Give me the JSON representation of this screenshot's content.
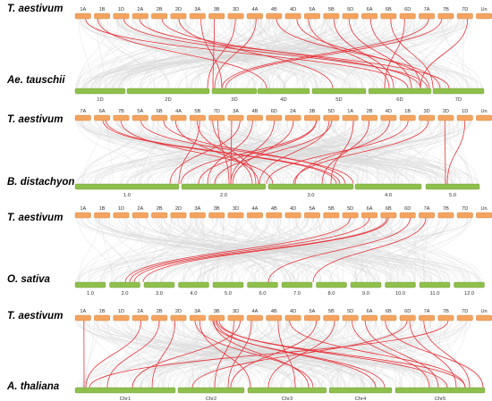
{
  "colors": {
    "wheat_chr": "#f4a460",
    "wheat_chr_edge": "#d0803a",
    "other_chr": "#8fbf4d",
    "other_chr_edge": "#6a9a32",
    "background_link": "#d9d9d9",
    "highlight_link": "#e8333a"
  },
  "panels": [
    {
      "top_species": "T. aestivum",
      "bottom_species": "Ae. tauschii",
      "top_chromosomes": [
        "1A",
        "1B",
        "1D",
        "2A",
        "2B",
        "2D",
        "3A",
        "3B",
        "3D",
        "4A",
        "4B",
        "4D",
        "5A",
        "5B",
        "5D",
        "6A",
        "6B",
        "6D",
        "7A",
        "7B",
        "7D",
        "Un"
      ],
      "bottom_chromosomes": [
        "1D",
        "2D",
        "3D",
        "4D",
        "5D",
        "6D",
        "7D"
      ]
    },
    {
      "top_species": "T. aestivum",
      "bottom_species": "B. distachyon",
      "top_chromosomes": [
        "7A",
        "6A",
        "7B",
        "5A",
        "6B",
        "4A",
        "5B",
        "7D",
        "3A",
        "4B",
        "6D",
        "2A",
        "3B",
        "5D",
        "1A",
        "2B",
        "4D",
        "1B",
        "3D",
        "2D",
        "1D",
        "Un"
      ],
      "bottom_chromosomes": [
        "1.0",
        "2.0",
        "3.0",
        "4.0",
        "5.0"
      ]
    },
    {
      "top_species": "T. aestivum",
      "bottom_species": "O. sativa",
      "top_chromosomes": [
        "1A",
        "1B",
        "1D",
        "2A",
        "2B",
        "2D",
        "3A",
        "3B",
        "3D",
        "4A",
        "4B",
        "4D",
        "5A",
        "5B",
        "5D",
        "6A",
        "6B",
        "6D",
        "7A",
        "7B",
        "7D",
        "Un"
      ],
      "bottom_chromosomes": [
        "1.0",
        "2.0",
        "3.0",
        "4.0",
        "5.0",
        "6.0",
        "7.0",
        "8.0",
        "9.0",
        "10.0",
        "11.0",
        "12.0"
      ]
    },
    {
      "top_species": "T. aestivum",
      "bottom_species": "A. thaliana",
      "top_chromosomes": [
        "1A",
        "1B",
        "1D",
        "2A",
        "2B",
        "2D",
        "3A",
        "3B",
        "3D",
        "4A",
        "4B",
        "4D",
        "5A",
        "5B",
        "5D",
        "6A",
        "6B",
        "6D",
        "7A",
        "7B",
        "7D",
        "Un"
      ],
      "bottom_chromosomes": [
        "Chr1",
        "Chr2",
        "Chr3",
        "Chr4",
        "Chr5"
      ]
    }
  ]
}
